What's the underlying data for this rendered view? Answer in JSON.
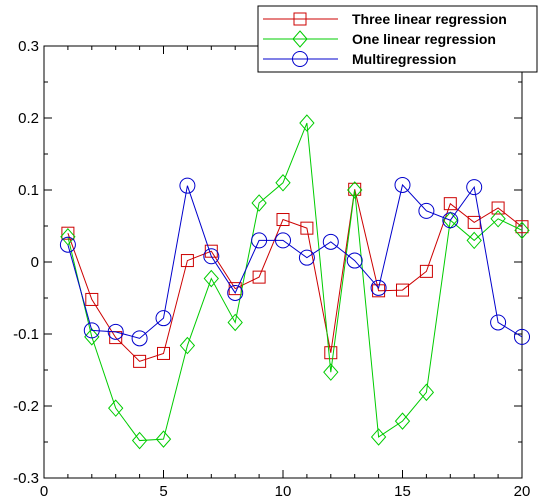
{
  "chart_data": {
    "type": "line",
    "title": "",
    "xlabel": "",
    "ylabel": "",
    "xlim": [
      0,
      20
    ],
    "ylim": [
      -0.3,
      0.3
    ],
    "xticks": [
      0,
      5,
      10,
      15,
      20
    ],
    "yticks": [
      -0.3,
      -0.2,
      -0.1,
      0,
      0.1,
      0.2,
      0.3
    ],
    "grid": false,
    "legend_position": "top-right",
    "x": [
      1,
      2,
      3,
      4,
      5,
      6,
      7,
      8,
      9,
      10,
      11,
      12,
      13,
      14,
      15,
      16,
      17,
      18,
      19,
      20
    ],
    "series": [
      {
        "name": "Three linear regression",
        "color": "#cc0000",
        "marker": "square",
        "values": [
          0.04,
          -0.052,
          -0.105,
          -0.138,
          -0.127,
          0.002,
          0.015,
          -0.037,
          -0.021,
          0.059,
          0.047,
          -0.126,
          0.101,
          -0.04,
          -0.039,
          -0.013,
          0.081,
          0.055,
          0.075,
          0.049
        ]
      },
      {
        "name": "One linear regression",
        "color": "#00cc00",
        "marker": "diamond",
        "values": [
          0.035,
          -0.104,
          -0.203,
          -0.248,
          -0.246,
          -0.116,
          -0.023,
          -0.084,
          0.082,
          0.11,
          0.193,
          -0.153,
          0.1,
          -0.243,
          -0.221,
          -0.181,
          0.058,
          0.03,
          0.06,
          0.044
        ]
      },
      {
        "name": "Multiregression",
        "color": "#0000cc",
        "marker": "circle",
        "values": [
          0.024,
          -0.095,
          -0.097,
          -0.106,
          -0.078,
          0.106,
          0.008,
          -0.043,
          0.03,
          0.03,
          0.006,
          0.028,
          0.002,
          -0.036,
          0.107,
          0.071,
          0.058,
          0.104,
          -0.084,
          -0.104
        ]
      }
    ]
  }
}
